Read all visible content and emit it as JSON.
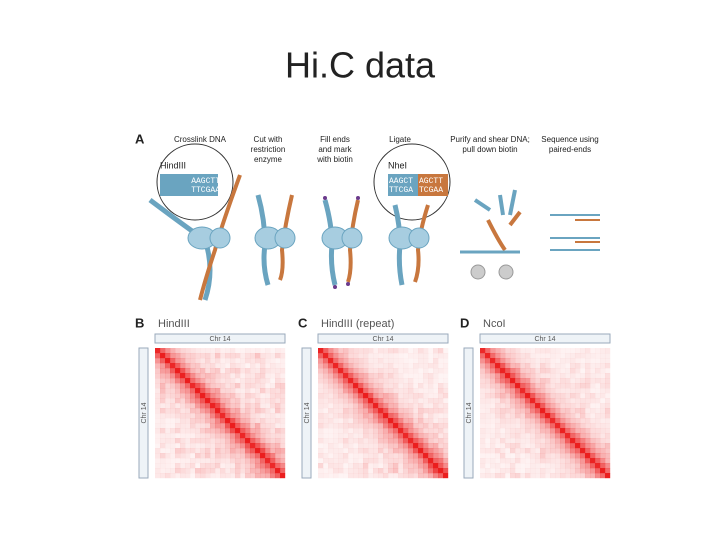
{
  "title": "Hi.C data",
  "panel_a": {
    "label": "A",
    "steps": [
      [
        "Crosslink DNA"
      ],
      [
        "Cut with",
        "restriction",
        "enzyme"
      ],
      [
        "Fill ends",
        "and mark",
        "with biotin"
      ],
      [
        "Ligate"
      ],
      [
        "Purify and shear DNA;",
        "pull down biotin"
      ],
      [
        "Sequence using",
        "paired-ends"
      ]
    ],
    "enzyme_1": "HindIII",
    "seq_top": "AAGCTT",
    "seq_bottom": "TTCGAA",
    "enzyme_2": "NheI",
    "ligated_top": [
      "AAGCT",
      "AGCTT"
    ],
    "ligated_bottom": [
      "TTCGA",
      "TCGAA"
    ]
  },
  "heatmaps": [
    {
      "label": "B",
      "enzyme": "HindIII",
      "x_axis": "Chr 14",
      "y_axis": "Chr 14"
    },
    {
      "label": "C",
      "enzyme": "HindIII (repeat)",
      "x_axis": "Chr 14",
      "y_axis": "Chr 14"
    },
    {
      "label": "D",
      "enzyme": "NcoI",
      "x_axis": "Chr 14",
      "y_axis": "Chr 14"
    }
  ]
}
